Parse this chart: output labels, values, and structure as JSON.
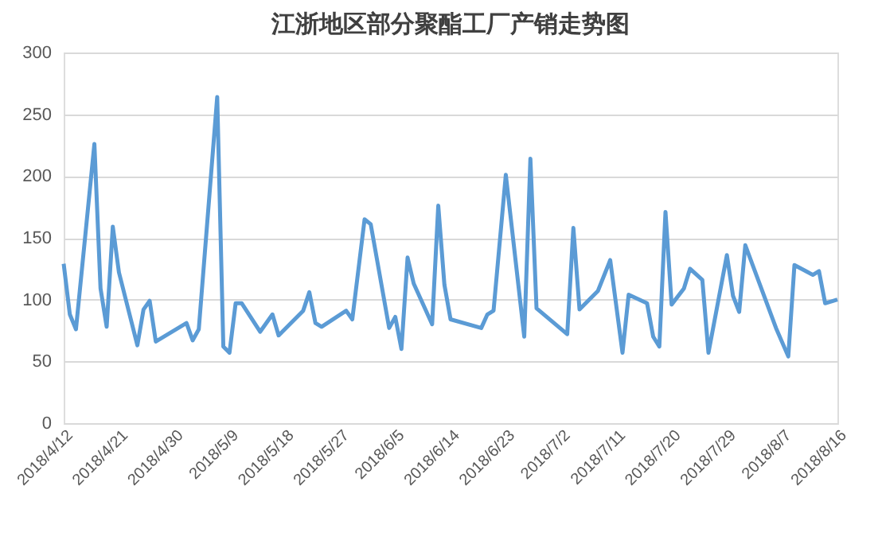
{
  "chart_data": {
    "type": "line",
    "title": "江浙地区部分聚酯工厂产销走势图",
    "x": [
      "2018-04-12",
      "2018-04-13",
      "2018-04-14",
      "2018-04-17",
      "2018-04-18",
      "2018-04-19",
      "2018-04-20",
      "2018-04-21",
      "2018-04-24",
      "2018-04-25",
      "2018-04-26",
      "2018-04-27",
      "2018-05-02",
      "2018-05-03",
      "2018-05-04",
      "2018-05-07",
      "2018-05-08",
      "2018-05-09",
      "2018-05-10",
      "2018-05-11",
      "2018-05-14",
      "2018-05-16",
      "2018-05-17",
      "2018-05-21",
      "2018-05-22",
      "2018-05-23",
      "2018-05-24",
      "2018-05-28",
      "2018-05-29",
      "2018-05-31",
      "2018-06-01",
      "2018-06-04",
      "2018-06-05",
      "2018-06-06",
      "2018-06-07",
      "2018-06-08",
      "2018-06-11",
      "2018-06-12",
      "2018-06-13",
      "2018-06-14",
      "2018-06-19",
      "2018-06-20",
      "2018-06-21",
      "2018-06-23",
      "2018-06-26",
      "2018-06-27",
      "2018-06-28",
      "2018-07-03",
      "2018-07-04",
      "2018-07-05",
      "2018-07-08",
      "2018-07-10",
      "2018-07-12",
      "2018-07-13",
      "2018-07-16",
      "2018-07-17",
      "2018-07-18",
      "2018-07-19",
      "2018-07-20",
      "2018-07-22",
      "2018-07-23",
      "2018-07-25",
      "2018-07-26",
      "2018-07-29",
      "2018-07-30",
      "2018-07-31",
      "2018-08-01",
      "2018-08-06",
      "2018-08-08",
      "2018-08-09",
      "2018-08-12",
      "2018-08-13",
      "2018-08-14",
      "2018-08-16"
    ],
    "series": [
      {
        "color": "#5b9bd5",
        "values": [
          129,
          88,
          76,
          226,
          109,
          78,
          159,
          122,
          63,
          92,
          99,
          66,
          81,
          67,
          76,
          264,
          62,
          57,
          97,
          97,
          74,
          88,
          71,
          91,
          106,
          81,
          78,
          91,
          84,
          165,
          161,
          77,
          86,
          60,
          134,
          113,
          80,
          176,
          112,
          84,
          77,
          88,
          91,
          201,
          70,
          214,
          93,
          72,
          158,
          92,
          107,
          132,
          57,
          104,
          97,
          70,
          62,
          171,
          96,
          109,
          125,
          116,
          57,
          136,
          103,
          90,
          144,
          77,
          54,
          128,
          120,
          123,
          97,
          100
        ]
      }
    ],
    "xlim": [
      "2018-04-12",
      "2018-08-16"
    ],
    "xticks": [
      {
        "value": "2018-04-12",
        "label": "2018/4/12"
      },
      {
        "value": "2018-04-21",
        "label": "2018/4/21"
      },
      {
        "value": "2018-04-30",
        "label": "2018/4/30"
      },
      {
        "value": "2018-05-09",
        "label": "2018/5/9"
      },
      {
        "value": "2018-05-18",
        "label": "2018/5/18"
      },
      {
        "value": "2018-05-27",
        "label": "2018/5/27"
      },
      {
        "value": "2018-06-05",
        "label": "2018/6/5"
      },
      {
        "value": "2018-06-14",
        "label": "2018/6/14"
      },
      {
        "value": "2018-06-23",
        "label": "2018/6/23"
      },
      {
        "value": "2018-07-02",
        "label": "2018/7/2"
      },
      {
        "value": "2018-07-11",
        "label": "2018/7/11"
      },
      {
        "value": "2018-07-20",
        "label": "2018/7/20"
      },
      {
        "value": "2018-07-29",
        "label": "2018/7/29"
      },
      {
        "value": "2018-08-07",
        "label": "2018/8/7"
      },
      {
        "value": "2018-08-16",
        "label": "2018/8/16"
      }
    ],
    "ylim": [
      0,
      300
    ],
    "yticks": [
      0,
      50,
      100,
      150,
      200,
      250,
      300
    ],
    "grid": "y",
    "marker": "none",
    "line_style": "solid"
  }
}
